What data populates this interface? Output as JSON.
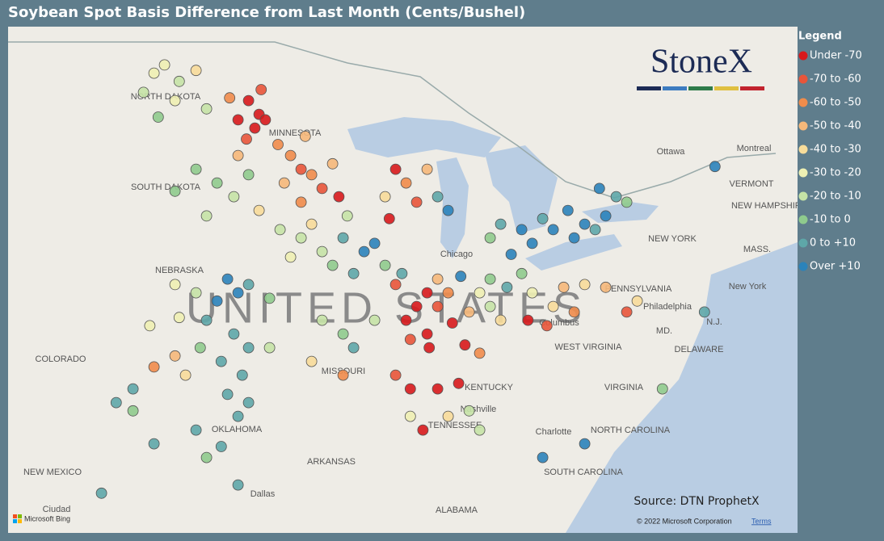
{
  "header": {
    "title": "Soybean Spot Basis Difference from Last Month (Cents/Bushel)"
  },
  "legend": {
    "title": "Legend",
    "items": [
      {
        "label": "Under -70",
        "color": "#d7191c"
      },
      {
        "label": "-70 to -60",
        "color": "#e8553a"
      },
      {
        "label": "-60 to -50",
        "color": "#f08c4b"
      },
      {
        "label": "-50 to -40",
        "color": "#f5b87a"
      },
      {
        "label": "-40 to -30",
        "color": "#f7dc9a"
      },
      {
        "label": "-30 to -20",
        "color": "#eef0b3"
      },
      {
        "label": "-20 to -10",
        "color": "#c5e3a6"
      },
      {
        "label": "-10 to 0",
        "color": "#8fcb8d"
      },
      {
        "label": "0 to +10",
        "color": "#5ea7a8"
      },
      {
        "label": "Over +10",
        "color": "#2b83ba"
      }
    ]
  },
  "logo": "StoneX",
  "source": "Source: DTN ProphetX",
  "copyright": "© 2022 Microsoft Corporation",
  "terms": "Terms",
  "bing": "Microsoft Bing",
  "map": {
    "watermark": "UNITED STATES",
    "labels": [
      "NORTH DAKOTA",
      "SOUTH DAKOTA",
      "MINNESOTA",
      "NEBRASKA",
      "COLORADO",
      "MISSOURI",
      "KENTUCKY",
      "TENNESSEE",
      "OKLAHOMA",
      "ARKANSAS",
      "NEW MEXICO",
      "ALABAMA",
      "WEST VIRGINIA",
      "VIRGINIA",
      "NORTH CAROLINA",
      "SOUTH CAROLINA",
      "PENNSYLVANIA",
      "NEW YORK",
      "VERMONT",
      "NEW HAMPSHIRE",
      "DELAWARE",
      "Ottawa",
      "Montreal",
      "Chicago",
      "Columbus",
      "Nashville",
      "Charlotte",
      "Philadelphia",
      "New York",
      "Dallas",
      "MASS.",
      "MD.",
      "N.J.",
      "Ciudad"
    ],
    "points": [
      [
        -102,
        48.5,
        5
      ],
      [
        -101.5,
        48.8,
        5
      ],
      [
        -100.8,
        48.2,
        6
      ],
      [
        -101,
        47.5,
        5
      ],
      [
        -100,
        48.6,
        4
      ],
      [
        -102.5,
        47.8,
        6
      ],
      [
        -101.8,
        46.9,
        7
      ],
      [
        -99.5,
        47.2,
        6
      ],
      [
        -97.5,
        47.5,
        0
      ],
      [
        -97,
        47,
        0
      ],
      [
        -97.2,
        46.5,
        0
      ],
      [
        -96.9,
        47.9,
        1
      ],
      [
        -98,
        46.8,
        0
      ],
      [
        -97.6,
        46.1,
        1
      ],
      [
        -96.7,
        46.8,
        0
      ],
      [
        -98.4,
        47.6,
        2
      ],
      [
        -95.5,
        45.5,
        2
      ],
      [
        -95,
        45,
        1
      ],
      [
        -94.5,
        44.8,
        2
      ],
      [
        -95.8,
        44.5,
        3
      ],
      [
        -94,
        44.3,
        1
      ],
      [
        -93.5,
        45.2,
        3
      ],
      [
        -94.8,
        46.2,
        3
      ],
      [
        -95,
        43.8,
        2
      ],
      [
        -96.1,
        45.9,
        2
      ],
      [
        -93.2,
        44,
        0
      ],
      [
        -99,
        44.5,
        7
      ],
      [
        -98.2,
        44,
        6
      ],
      [
        -97.5,
        44.8,
        7
      ],
      [
        -100,
        45,
        7
      ],
      [
        -98,
        45.5,
        3
      ],
      [
        -97,
        43.5,
        4
      ],
      [
        -101,
        44.2,
        7
      ],
      [
        -99.5,
        43.3,
        6
      ],
      [
        -95,
        42.5,
        6
      ],
      [
        -94,
        42,
        6
      ],
      [
        -93,
        42.5,
        8
      ],
      [
        -92,
        42,
        9
      ],
      [
        -91.5,
        42.3,
        9
      ],
      [
        -93.5,
        41.5,
        7
      ],
      [
        -95.5,
        41.8,
        5
      ],
      [
        -92.5,
        41.2,
        8
      ],
      [
        -91,
        41.5,
        7
      ],
      [
        -94.5,
        43,
        4
      ],
      [
        -92.8,
        43.3,
        6
      ],
      [
        -96,
        42.8,
        6
      ],
      [
        -90,
        44.5,
        2
      ],
      [
        -89.5,
        43.8,
        1
      ],
      [
        -90.5,
        45,
        0
      ],
      [
        -88.5,
        44,
        8
      ],
      [
        -88,
        43.5,
        9
      ],
      [
        -89,
        45,
        3
      ],
      [
        -91,
        44,
        4
      ],
      [
        -90.8,
        43.2,
        0
      ],
      [
        -85.5,
        43,
        8
      ],
      [
        -84.5,
        42.8,
        9
      ],
      [
        -83.5,
        43.2,
        8
      ],
      [
        -84,
        42.3,
        9
      ],
      [
        -83,
        42.8,
        9
      ],
      [
        -86,
        42.5,
        7
      ],
      [
        -85,
        41.9,
        9
      ],
      [
        -81.5,
        43,
        9
      ],
      [
        -80.5,
        43.3,
        9
      ],
      [
        -81,
        42.8,
        8
      ],
      [
        -82,
        42.5,
        9
      ],
      [
        -80,
        44,
        8
      ],
      [
        -79.5,
        43.8,
        7
      ],
      [
        -82.3,
        43.5,
        9
      ],
      [
        -80.8,
        44.3,
        9
      ],
      [
        -75.3,
        45.1,
        9
      ],
      [
        -89,
        40.5,
        0
      ],
      [
        -88.5,
        40,
        1
      ],
      [
        -89.5,
        40,
        0
      ],
      [
        -88,
        40.5,
        2
      ],
      [
        -90,
        39.5,
        0
      ],
      [
        -89,
        39,
        0
      ],
      [
        -88.5,
        41,
        3
      ],
      [
        -90.5,
        40.8,
        1
      ],
      [
        -88.9,
        38.5,
        0
      ],
      [
        -89.8,
        38.8,
        1
      ],
      [
        -87.8,
        39.4,
        0
      ],
      [
        -90.2,
        41.2,
        8
      ],
      [
        -86.5,
        40.5,
        5
      ],
      [
        -86,
        40,
        6
      ],
      [
        -85.5,
        39.5,
        4
      ],
      [
        -87,
        39.8,
        3
      ],
      [
        -86,
        41,
        7
      ],
      [
        -85.2,
        40.7,
        8
      ],
      [
        -87.2,
        38.6,
        0
      ],
      [
        -86.5,
        38.3,
        2
      ],
      [
        -87.4,
        41.1,
        9
      ],
      [
        -84,
        40.5,
        5
      ],
      [
        -83,
        40,
        4
      ],
      [
        -82.5,
        40.7,
        3
      ],
      [
        -84.2,
        39.5,
        0
      ],
      [
        -83.3,
        39.3,
        1
      ],
      [
        -81.5,
        40.8,
        4
      ],
      [
        -84.5,
        41.2,
        7
      ],
      [
        -82,
        39.8,
        2
      ],
      [
        -98.5,
        41,
        9
      ],
      [
        -98,
        40.5,
        9
      ],
      [
        -99,
        40.2,
        9
      ],
      [
        -97.5,
        40.8,
        8
      ],
      [
        -100,
        40.5,
        6
      ],
      [
        -101,
        40.8,
        5
      ],
      [
        -96.5,
        40.3,
        7
      ],
      [
        -99.5,
        39.5,
        8
      ],
      [
        -98.2,
        39,
        8
      ],
      [
        -97.5,
        38.5,
        8
      ],
      [
        -98.8,
        38,
        8
      ],
      [
        -99.8,
        38.5,
        7
      ],
      [
        -97.8,
        37.5,
        8
      ],
      [
        -98.5,
        36.8,
        8
      ],
      [
        -97.5,
        36.5,
        8
      ],
      [
        -98,
        36,
        8
      ],
      [
        -100.5,
        37.5,
        4
      ],
      [
        -101,
        38.2,
        3
      ],
      [
        -102,
        37.8,
        2
      ],
      [
        -103,
        37,
        8
      ],
      [
        -96.5,
        38.5,
        6
      ],
      [
        -100.8,
        39.6,
        5
      ],
      [
        -102.2,
        39.3,
        5
      ],
      [
        -94,
        39.5,
        6
      ],
      [
        -93,
        39,
        7
      ],
      [
        -92.5,
        38.5,
        8
      ],
      [
        -91.5,
        39.5,
        6
      ],
      [
        -90.5,
        37.5,
        1
      ],
      [
        -89.8,
        37,
        0
      ],
      [
        -94.5,
        38,
        4
      ],
      [
        -93,
        37.5,
        2
      ],
      [
        -88.5,
        37,
        0
      ],
      [
        -87.5,
        37.2,
        0
      ],
      [
        -88,
        36,
        4
      ],
      [
        -87,
        36.2,
        6
      ],
      [
        -86.5,
        35.5,
        6
      ],
      [
        -89.2,
        35.5,
        0
      ],
      [
        -89.8,
        36,
        5
      ],
      [
        -77.8,
        37,
        7
      ],
      [
        -75.8,
        39.8,
        8
      ],
      [
        -81.5,
        35,
        9
      ],
      [
        -83.5,
        34.5,
        9
      ],
      [
        -79,
        40.2,
        4
      ],
      [
        -79.5,
        39.8,
        1
      ],
      [
        -80.5,
        40.7,
        3
      ],
      [
        -99.5,
        34.5,
        7
      ],
      [
        -98.8,
        34.9,
        8
      ],
      [
        -100,
        35.5,
        8
      ],
      [
        -102,
        35,
        8
      ],
      [
        -98,
        33.5,
        8
      ],
      [
        -103,
        36.2,
        7
      ],
      [
        -103.8,
        36.5,
        8
      ],
      [
        -104.5,
        33.2,
        8
      ]
    ]
  }
}
